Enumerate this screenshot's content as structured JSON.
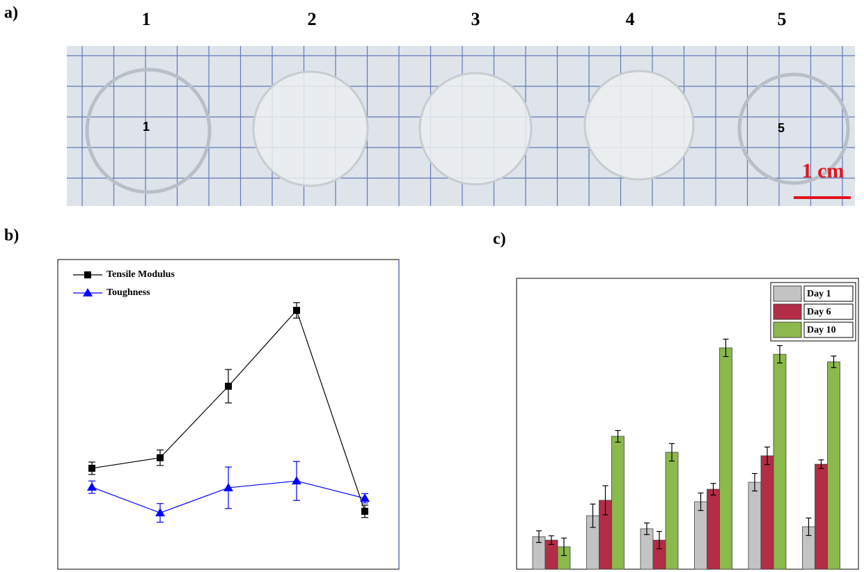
{
  "figure": {
    "panel_labels": [
      "a)",
      "b)",
      "c)"
    ],
    "photo": {
      "sample_labels": [
        "1",
        "2",
        "3",
        "4",
        "5"
      ],
      "disc_labels": [
        "1",
        "5"
      ],
      "scale_bar": "1 cm"
    }
  },
  "chart_data": [
    {
      "type": "line",
      "legend": "upper-left",
      "categories": [
        null,
        null,
        null,
        null,
        null
      ],
      "ylim": [
        0,
        100
      ],
      "series": [
        {
          "name": "Tensile Modulus",
          "color": "#000000",
          "marker": "square",
          "values": [
            32.6,
            36.0,
            59.1,
            83.6,
            18.7
          ],
          "errors": [
            2,
            2.5,
            5.4,
            2.5,
            2
          ]
        },
        {
          "name": "Toughness",
          "color": "#0000ff",
          "marker": "triangle",
          "values": [
            26.5,
            18.2,
            26.3,
            28.5,
            22.9
          ],
          "errors": [
            2,
            3,
            6.7,
            6.3,
            1.5
          ]
        }
      ]
    },
    {
      "type": "bar",
      "legend": "upper-right",
      "categories": [
        null,
        null,
        null,
        null,
        null,
        null
      ],
      "ylim": [
        0,
        100
      ],
      "series": [
        {
          "name": "Day 1",
          "color": "#c3c3c3",
          "values": [
            11.2,
            18.4,
            13.9,
            23.2,
            29.9,
            14.6
          ],
          "errors": [
            2,
            4,
            2,
            3,
            3,
            3
          ]
        },
        {
          "name": "Day 6",
          "color": "#b22d45",
          "values": [
            10.0,
            23.7,
            10.0,
            27.5,
            39.0,
            36.1
          ],
          "errors": [
            1.5,
            5,
            3,
            2,
            3,
            1.5
          ]
        },
        {
          "name": "Day 10",
          "color": "#8bb94b",
          "values": [
            7.7,
            45.7,
            40.2,
            76.1,
            73.9,
            71.3
          ],
          "errors": [
            3,
            2,
            3,
            3,
            3,
            2
          ]
        }
      ]
    }
  ]
}
